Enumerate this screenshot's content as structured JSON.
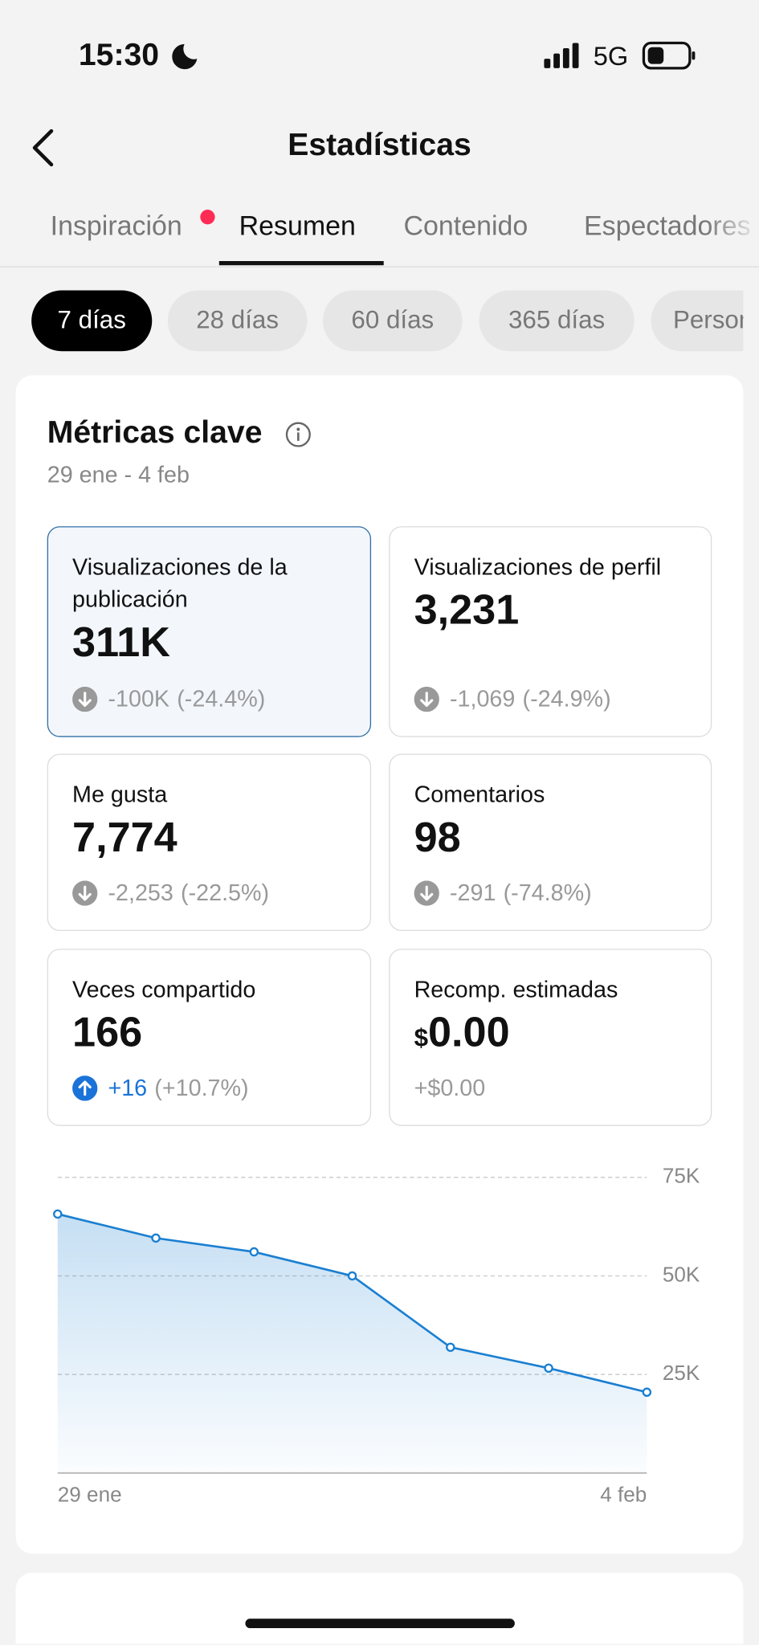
{
  "status": {
    "time": "15:30",
    "network": "5G"
  },
  "header": {
    "title": "Estadísticas"
  },
  "tabs": [
    "Inspiración",
    "Resumen",
    "Contenido",
    "Espectadores"
  ],
  "ranges": [
    "7 días",
    "28 días",
    "60 días",
    "365 días",
    "Personalizado"
  ],
  "card": {
    "title": "Métricas clave",
    "date_range": "29 ene - 4 feb",
    "metrics": [
      {
        "label": "Visualizaciones de la publicación",
        "value": "311K",
        "change": "-100K",
        "change_pct": "(-24.4%)",
        "trend": "down"
      },
      {
        "label": "Visualizaciones de perfil",
        "value": "3,231",
        "change": "-1,069",
        "change_pct": "(-24.9%)",
        "trend": "down"
      },
      {
        "label": "Me gusta",
        "value": "7,774",
        "change": "-2,253",
        "change_pct": "(-22.5%)",
        "trend": "down"
      },
      {
        "label": "Comentarios",
        "value": "98",
        "change": "-291",
        "change_pct": "(-74.8%)",
        "trend": "down"
      },
      {
        "label": "Veces compartido",
        "value": "166",
        "change": "+16",
        "change_pct": "(+10.7%)",
        "trend": "up"
      },
      {
        "label": "Recomp. estimadas",
        "currency": "$",
        "value": "0.00",
        "change": "+$0.00"
      }
    ]
  },
  "chart_data": {
    "type": "area",
    "categories": [
      "29 ene",
      null,
      null,
      null,
      null,
      null,
      "4 feb"
    ],
    "values": [
      65700,
      59600,
      56100,
      50000,
      31900,
      26600,
      20500
    ],
    "color": "#1a7fd1",
    "ylim": [
      0,
      75000
    ],
    "yticks": [
      {
        "value": 25000,
        "label": "25K"
      },
      {
        "value": 50000,
        "label": "50K"
      },
      {
        "value": 75000,
        "label": "75K"
      }
    ],
    "grid": true
  }
}
